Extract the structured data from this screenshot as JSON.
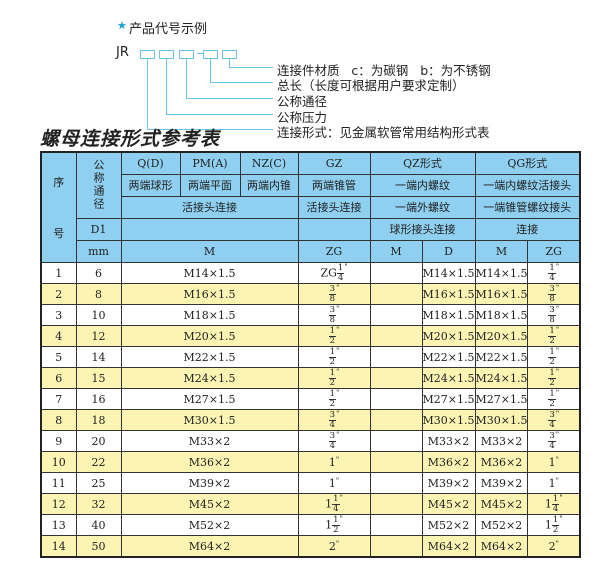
{
  "legend": {
    "star_icon": "star-icon",
    "title": "产品代号示例",
    "code_prefix": "JR",
    "labels": [
      "连接件材质   c：为碳钢   b：为不锈钢",
      "总长（长度可根据用户要求定制）",
      "公称通径",
      "公称压力",
      "连接形式：见金属软管常用结构形式表"
    ]
  },
  "table_title": "螺母连接形式参考表",
  "colors": {
    "header": "#8fd0f0",
    "stripe": "#fcf4b2",
    "lines": "#6cc4e4"
  },
  "header": {
    "seq_a": "序",
    "seq_b": "号",
    "dn": "公称通径",
    "d1": "D1",
    "mm": "mm",
    "q": "Q(D)",
    "pm": "PM(A)",
    "nz": "NZ(C)",
    "gz": "GZ",
    "qz": "QZ形式",
    "qg": "QG形式",
    "q2": "两端球形",
    "pm2": "两端平面",
    "nz2": "两端内锥",
    "gz2": "两端锥管",
    "qz2": "一端内螺纹",
    "qg2": "一端内螺纹活接头",
    "live": "活接头连接",
    "gz3": "活接头连接",
    "qz3": "一端外螺纹",
    "qg3": "一端锥管螺纹接头",
    "qz4": "球形接头连接",
    "qg4": "连接",
    "m": "M",
    "zg": "ZG",
    "qz_m": "M",
    "qz_d": "D",
    "qg_m": "M",
    "qg_zg": "ZG"
  },
  "rows": [
    {
      "no": "1",
      "dn": "6",
      "m": "M14×1.5",
      "zg": {
        "pre": "ZG",
        "num": "1",
        "den": "4",
        "suf": "\""
      },
      "qz_d": "M14×1.5",
      "qg_m": "M14×1.5"
    },
    {
      "no": "2",
      "dn": "8",
      "m": "M16×1.5",
      "zg": {
        "pre": "",
        "num": "3",
        "den": "8",
        "suf": "\""
      },
      "qz_d": "M16×1.5",
      "qg_m": "M16×1.5"
    },
    {
      "no": "3",
      "dn": "10",
      "m": "M18×1.5",
      "zg": {
        "pre": "",
        "num": "3",
        "den": "8",
        "suf": "\""
      },
      "qz_d": "M18×1.5",
      "qg_m": "M18×1.5"
    },
    {
      "no": "4",
      "dn": "12",
      "m": "M20×1.5",
      "zg": {
        "pre": "",
        "num": "1",
        "den": "2",
        "suf": "\""
      },
      "qz_d": "M20×1.5",
      "qg_m": "M20×1.5"
    },
    {
      "no": "5",
      "dn": "14",
      "m": "M22×1.5",
      "zg": {
        "pre": "",
        "num": "1",
        "den": "2",
        "suf": "\""
      },
      "qz_d": "M22×1.5",
      "qg_m": "M22×1.5"
    },
    {
      "no": "6",
      "dn": "15",
      "m": "M24×1.5",
      "zg": {
        "pre": "",
        "num": "1",
        "den": "2",
        "suf": "\""
      },
      "qz_d": "M24×1.5",
      "qg_m": "M24×1.5"
    },
    {
      "no": "7",
      "dn": "16",
      "m": "M27×1.5",
      "zg": {
        "pre": "",
        "num": "1",
        "den": "2",
        "suf": "\""
      },
      "qz_d": "M27×1.5",
      "qg_m": "M27×1.5"
    },
    {
      "no": "8",
      "dn": "18",
      "m": "M30×1.5",
      "zg": {
        "pre": "",
        "num": "3",
        "den": "4",
        "suf": "\""
      },
      "qz_d": "M30×1.5",
      "qg_m": "M30×1.5"
    },
    {
      "no": "9",
      "dn": "20",
      "m": "M33×2",
      "zg": {
        "pre": "",
        "num": "3",
        "den": "4",
        "suf": "\""
      },
      "qz_d": "M33×2",
      "qg_m": "M33×2"
    },
    {
      "no": "10",
      "dn": "22",
      "m": "M36×2",
      "zg": {
        "pre": "1",
        "num": "",
        "den": "",
        "suf": "\""
      },
      "qz_d": "M36×2",
      "qg_m": "M36×2"
    },
    {
      "no": "11",
      "dn": "25",
      "m": "M39×2",
      "zg": {
        "pre": "1",
        "num": "",
        "den": "",
        "suf": "\""
      },
      "qz_d": "M39×2",
      "qg_m": "M39×2"
    },
    {
      "no": "12",
      "dn": "32",
      "m": "M45×2",
      "zg": {
        "pre": "1",
        "num": "1",
        "den": "4",
        "suf": "\""
      },
      "qz_d": "M45×2",
      "qg_m": "M45×2"
    },
    {
      "no": "13",
      "dn": "40",
      "m": "M52×2",
      "zg": {
        "pre": "1",
        "num": "1",
        "den": "2",
        "suf": "\""
      },
      "qz_d": "M52×2",
      "qg_m": "M52×2"
    },
    {
      "no": "14",
      "dn": "50",
      "m": "M64×2",
      "zg": {
        "pre": "2",
        "num": "",
        "den": "",
        "suf": "\""
      },
      "qz_d": "M64×2",
      "qg_m": "M64×2"
    }
  ]
}
